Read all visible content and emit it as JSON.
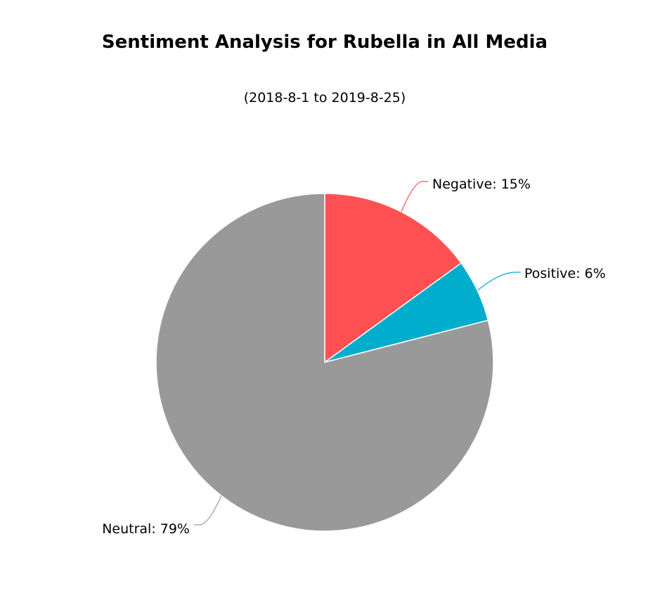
{
  "chart_data": {
    "type": "pie",
    "title": "Sentiment Analysis for Rubella in All Media",
    "subtitle": "(2018-8-1 to 2019-8-25)",
    "slices": [
      {
        "name": "Negative",
        "value": 15,
        "label": "Negative: 15%",
        "color": "#ff5053"
      },
      {
        "name": "Positive",
        "value": 6,
        "label": "Positive: 6%",
        "color": "#00adcc"
      },
      {
        "name": "Neutral",
        "value": 79,
        "label": "Neutral: 79%",
        "color": "#999999"
      }
    ],
    "start_angle": "12 o'clock",
    "direction": "clockwise",
    "legend": "none"
  }
}
